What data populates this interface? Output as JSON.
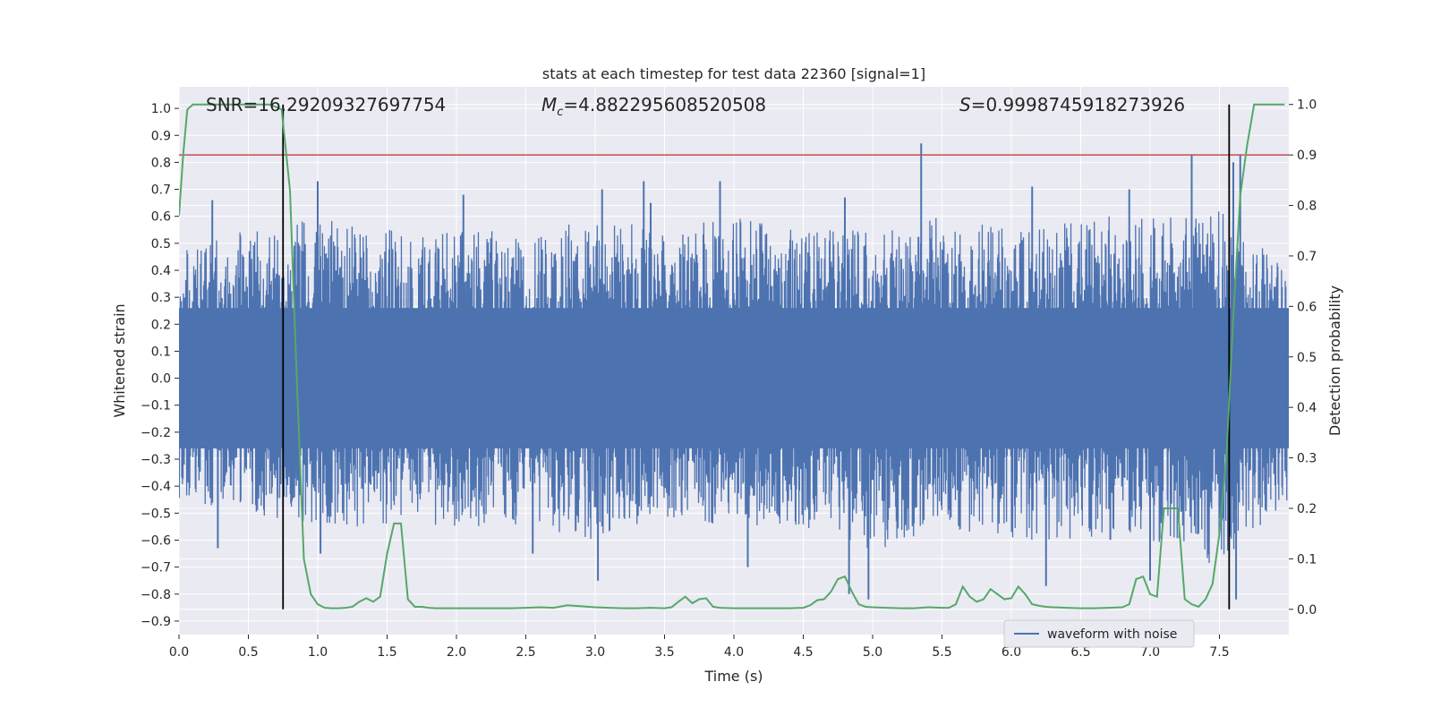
{
  "chart_data": {
    "type": "line",
    "title": "stats at each timestep for test data 22360 [signal=1]",
    "xlabel": "Time (s)",
    "ylabel_left": "Whitened strain",
    "ylabel_right": "Detection probability",
    "xlim": [
      0,
      8.0
    ],
    "ylim_left": [
      -0.95,
      1.08
    ],
    "ylim_right": [
      -0.05,
      1.035
    ],
    "x_ticks": [
      "0.0",
      "0.5",
      "1.0",
      "1.5",
      "2.0",
      "2.5",
      "3.0",
      "3.5",
      "4.0",
      "4.5",
      "5.0",
      "5.5",
      "6.0",
      "6.5",
      "7.0",
      "7.5"
    ],
    "y_ticks_left": [
      "1.0",
      "0.9",
      "0.8",
      "0.7",
      "0.6",
      "0.5",
      "0.4",
      "0.3",
      "0.2",
      "0.1",
      "0.0",
      "-0.1",
      "-0.2",
      "-0.3",
      "-0.4",
      "-0.5",
      "-0.6",
      "-0.7",
      "-0.8",
      "-0.9"
    ],
    "y_ticks_right": [
      "1.0",
      "0.9",
      "0.8",
      "0.7",
      "0.6",
      "0.5",
      "0.4",
      "0.3",
      "0.2",
      "0.1",
      "0.0"
    ],
    "grid": true,
    "legend": {
      "entries": [
        "waveform with noise"
      ],
      "placement": "lower-right"
    },
    "annotations": {
      "snr": "SNR=16.29209327697754",
      "mc_symbol": "M",
      "mc_sub": "c",
      "mc_value": "=4.882295608520508",
      "s_symbol": "S",
      "s_value": "=0.9998745918273926"
    },
    "threshold_right": 0.9,
    "vertical_lines_x": [
      0.75,
      7.57
    ],
    "series": [
      {
        "name": "waveform with noise",
        "axis": "left",
        "color": "#4c72b0",
        "envelope_x": [
          0.0,
          0.5,
          1.0,
          1.5,
          2.0,
          2.5,
          3.0,
          3.5,
          4.0,
          4.5,
          5.0,
          5.5,
          6.0,
          6.5,
          7.0,
          7.5,
          8.0
        ],
        "envelope_upper": [
          0.5,
          0.55,
          0.6,
          0.55,
          0.55,
          0.55,
          0.6,
          0.55,
          0.6,
          0.55,
          0.55,
          0.6,
          0.55,
          0.6,
          0.6,
          0.62,
          0.45
        ],
        "envelope_lower": [
          -0.45,
          -0.5,
          -0.55,
          -0.55,
          -0.55,
          -0.55,
          -0.6,
          -0.55,
          -0.55,
          -0.55,
          -0.65,
          -0.55,
          -0.6,
          -0.6,
          -0.6,
          -0.7,
          -0.45
        ],
        "peaks": [
          {
            "x": 0.24,
            "y": 0.66
          },
          {
            "x": 0.28,
            "y": -0.63
          },
          {
            "x": 1.0,
            "y": 0.73
          },
          {
            "x": 1.02,
            "y": -0.65
          },
          {
            "x": 2.05,
            "y": 0.68
          },
          {
            "x": 2.55,
            "y": -0.65
          },
          {
            "x": 3.02,
            "y": -0.75
          },
          {
            "x": 3.05,
            "y": 0.7
          },
          {
            "x": 3.35,
            "y": 0.73
          },
          {
            "x": 3.4,
            "y": 0.65
          },
          {
            "x": 3.9,
            "y": 0.73
          },
          {
            "x": 4.1,
            "y": -0.7
          },
          {
            "x": 4.8,
            "y": 0.67
          },
          {
            "x": 4.83,
            "y": -0.8
          },
          {
            "x": 4.97,
            "y": -0.82
          },
          {
            "x": 5.35,
            "y": 0.87
          },
          {
            "x": 6.15,
            "y": 0.71
          },
          {
            "x": 6.25,
            "y": -0.77
          },
          {
            "x": 6.85,
            "y": 0.7
          },
          {
            "x": 7.0,
            "y": -0.75
          },
          {
            "x": 7.3,
            "y": 0.83
          },
          {
            "x": 7.6,
            "y": 0.8
          },
          {
            "x": 7.62,
            "y": -0.82
          },
          {
            "x": 7.65,
            "y": 0.83
          }
        ]
      },
      {
        "name": "",
        "axis": "right",
        "color": "#55a868",
        "x": [
          0.0,
          0.03,
          0.06,
          0.1,
          0.15,
          0.2,
          0.25,
          0.3,
          0.35,
          0.4,
          0.45,
          0.5,
          0.55,
          0.6,
          0.65,
          0.7,
          0.74,
          0.8,
          0.85,
          0.9,
          0.95,
          1.0,
          1.05,
          1.1,
          1.15,
          1.2,
          1.25,
          1.3,
          1.35,
          1.4,
          1.45,
          1.5,
          1.55,
          1.6,
          1.65,
          1.7,
          1.75,
          1.8,
          1.85,
          1.9,
          2.0,
          2.1,
          2.2,
          2.3,
          2.4,
          2.5,
          2.6,
          2.7,
          2.8,
          2.9,
          3.0,
          3.1,
          3.2,
          3.3,
          3.4,
          3.5,
          3.55,
          3.6,
          3.65,
          3.7,
          3.75,
          3.8,
          3.85,
          3.9,
          4.0,
          4.1,
          4.2,
          4.3,
          4.4,
          4.5,
          4.55,
          4.6,
          4.65,
          4.7,
          4.75,
          4.8,
          4.85,
          4.9,
          4.95,
          5.0,
          5.1,
          5.2,
          5.3,
          5.4,
          5.5,
          5.55,
          5.6,
          5.65,
          5.7,
          5.75,
          5.8,
          5.85,
          5.9,
          5.95,
          6.0,
          6.05,
          6.1,
          6.15,
          6.2,
          6.25,
          6.3,
          6.4,
          6.5,
          6.6,
          6.7,
          6.8,
          6.85,
          6.9,
          6.95,
          7.0,
          7.05,
          7.1,
          7.15,
          7.2,
          7.25,
          7.3,
          7.35,
          7.4,
          7.45,
          7.5,
          7.55,
          7.6,
          7.65,
          7.7,
          7.75,
          7.8,
          7.9,
          7.97
        ],
        "y": [
          0.78,
          0.9,
          0.99,
          1.0,
          1.0,
          1.0,
          1.0,
          1.0,
          1.0,
          1.0,
          1.0,
          1.0,
          1.0,
          1.0,
          1.0,
          0.995,
          0.99,
          0.83,
          0.45,
          0.1,
          0.03,
          0.01,
          0.003,
          0.002,
          0.002,
          0.003,
          0.005,
          0.015,
          0.022,
          0.015,
          0.025,
          0.11,
          0.17,
          0.17,
          0.02,
          0.005,
          0.005,
          0.003,
          0.002,
          0.002,
          0.002,
          0.002,
          0.002,
          0.002,
          0.002,
          0.003,
          0.004,
          0.003,
          0.008,
          0.006,
          0.004,
          0.003,
          0.002,
          0.002,
          0.003,
          0.002,
          0.004,
          0.015,
          0.025,
          0.012,
          0.02,
          0.022,
          0.005,
          0.003,
          0.002,
          0.002,
          0.002,
          0.002,
          0.002,
          0.003,
          0.008,
          0.018,
          0.02,
          0.035,
          0.06,
          0.065,
          0.035,
          0.01,
          0.005,
          0.004,
          0.003,
          0.002,
          0.002,
          0.004,
          0.003,
          0.003,
          0.01,
          0.045,
          0.025,
          0.015,
          0.02,
          0.04,
          0.03,
          0.02,
          0.022,
          0.045,
          0.03,
          0.01,
          0.007,
          0.005,
          0.004,
          0.003,
          0.002,
          0.002,
          0.003,
          0.004,
          0.01,
          0.06,
          0.065,
          0.03,
          0.025,
          0.2,
          0.2,
          0.2,
          0.02,
          0.01,
          0.005,
          0.02,
          0.05,
          0.15,
          0.3,
          0.58,
          0.82,
          0.92,
          1.0,
          1.0,
          1.0,
          1.0
        ]
      }
    ]
  }
}
